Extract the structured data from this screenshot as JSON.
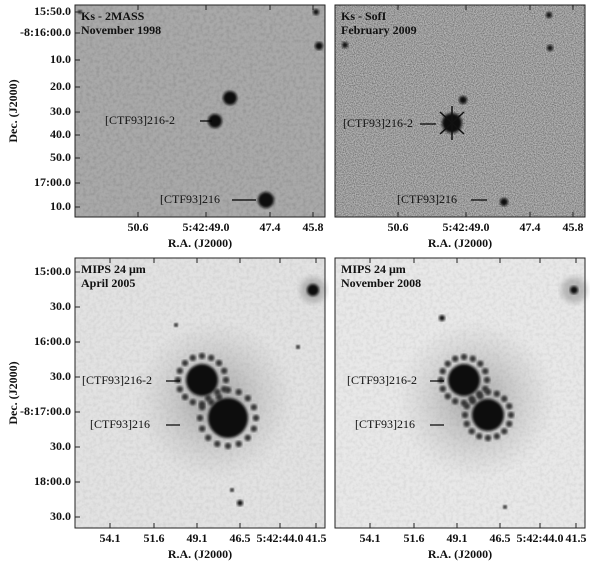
{
  "panels": [
    {
      "title": "Ks - 2MASS",
      "date": "November 1998",
      "sources": [
        "[CTF93]216-2",
        "[CTF93]216"
      ],
      "x_ticks": [
        "50.6",
        "5:42:49.0",
        "47.4",
        "45.8"
      ],
      "y_ticks": [
        "15:50.0",
        "-8:16:00.0",
        "10.0",
        "20.0",
        "30.0",
        "40.0",
        "50.0",
        "17:00.0",
        "10.0"
      ],
      "x_label": "R.A. (J2000)"
    },
    {
      "title": "Ks - SofI",
      "date": "February 2009",
      "sources": [
        "[CTF93]216-2",
        "[CTF93]216"
      ],
      "x_ticks": [
        "50.6",
        "5:42:49.0",
        "47.4",
        "45.8"
      ],
      "x_label": "R.A. (J2000)"
    },
    {
      "title": "MIPS 24 μm",
      "date": "April 2005",
      "sources": [
        "[CTF93]216-2",
        "[CTF93]216"
      ],
      "x_ticks": [
        "54.1",
        "51.6",
        "49.1",
        "46.5",
        "5:42:44.0",
        "41.5"
      ],
      "y_ticks": [
        "15:00.0",
        "30.0",
        "16:00.0",
        "30.0",
        "-8:17:00.0",
        "30.0",
        "18:00.0",
        "30.0"
      ],
      "x_label": "R.A. (J2000)"
    },
    {
      "title": "MIPS 24 μm",
      "date": "November 2008",
      "sources": [
        "[CTF93]216-2",
        "[CTF93]216"
      ],
      "x_ticks": [
        "54.1",
        "51.6",
        "49.1",
        "46.5",
        "5:42:44.0",
        "41.5"
      ],
      "x_label": "R.A. (J2000)"
    }
  ],
  "y_labels": [
    "Dec. (J2000)",
    "Dec. (J2000)"
  ]
}
